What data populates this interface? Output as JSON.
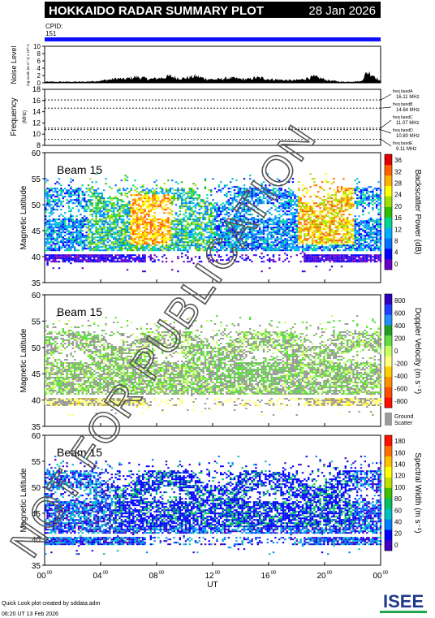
{
  "header": {
    "title": "HOKKAIDO RADAR SUMMARY PLOT",
    "date": "28 Jan 2026",
    "cpid_label": "CPID:",
    "cpid_value": "151"
  },
  "watermark": "NOT FOR PUBLICATION",
  "footer": {
    "line1": "Quick Look plot created by sddata.adm",
    "line2": "06:20 UT 13 Feb 2026",
    "logo_text": "ISEE"
  },
  "colors": {
    "accent_blue": "#1010ff",
    "ground_scatter": "#9a9a9a",
    "logo_green": "#1aa84a",
    "logo_blue": "#1f3a8c"
  },
  "chart_data": [
    {
      "type": "area",
      "panel": "noise",
      "ylabel": "Noise Level",
      "ylabel_sub": "log-scale (m s^-1) x 10^-4",
      "ylim": [
        0,
        10
      ],
      "yticks": [
        "0",
        "2",
        "4",
        "6",
        "8",
        "10"
      ],
      "x_range_ut_hours": [
        0,
        24
      ],
      "series": [
        {
          "values": [
            0.3,
            0.3,
            0.3,
            0.3,
            0.3,
            0.3,
            0.3,
            0.4,
            0.5,
            0.7,
            0.9,
            1.2,
            1.0,
            1.3,
            1.6,
            1.3,
            1.0,
            1.2,
            1.4,
            1.8,
            1.4,
            1.2,
            1.5,
            1.8,
            1.3,
            1.0,
            0.9,
            1.1,
            1.3,
            1.2,
            1.0,
            1.0,
            1.4,
            1.3,
            1.0,
            0.9,
            0.8,
            0.7,
            0.7,
            0.9,
            1.4,
            1.6,
            1.2,
            0.7,
            0.5,
            0.3,
            0.3,
            0.4,
            0.4,
            3.0,
            2.0,
            0.3
          ]
        }
      ]
    },
    {
      "type": "line",
      "panel": "frequency",
      "ylabel": "Frequency",
      "ylabel_unit": "(MHz)",
      "ylim": [
        8,
        18
      ],
      "yticks": [
        "8",
        "10",
        "12",
        "14",
        "16",
        "18"
      ],
      "freq_bands": [
        {
          "label": "freq bandA",
          "value": "16.11 MHz",
          "mhz": 16.11
        },
        {
          "label": "freq bandB",
          "value": "14.64 MHz",
          "mhz": 14.64
        },
        {
          "label": "freq bandC",
          "value": "11.07 MHz",
          "mhz": 11.07
        },
        {
          "label": "freq bandD",
          "value": "10.80 MHz",
          "mhz": 10.8
        },
        {
          "label": "freq bandE",
          "value": "9.11 MHz",
          "mhz": 9.11
        }
      ]
    },
    {
      "type": "heatmap",
      "panel": "power",
      "beam": "Beam 15",
      "ylabel": "Magnetic Latitude",
      "ylim": [
        35,
        60
      ],
      "yticks": [
        "35",
        "40",
        "45",
        "50",
        "55",
        "60"
      ],
      "colorbar_label": "Backscatter Power (dB)",
      "colorbar_ticks": [
        "0",
        "4",
        "8",
        "12",
        "16",
        "20",
        "24",
        "28",
        "32",
        "36"
      ],
      "colorbar_colors": [
        "#6a00c8",
        "#0000ff",
        "#0070ff",
        "#00b0ff",
        "#00d890",
        "#30c000",
        "#a0e000",
        "#ffff00",
        "#ffb000",
        "#ff6000",
        "#e00000"
      ]
    },
    {
      "type": "heatmap",
      "panel": "velocity",
      "beam": "Beam 15",
      "ylabel": "Magnetic Latitude",
      "ylim": [
        35,
        60
      ],
      "yticks": [
        "35",
        "40",
        "45",
        "50",
        "55",
        "60"
      ],
      "colorbar_label": "Doppler Velocity (m s⁻¹)",
      "colorbar_ticks": [
        "-800",
        "-600",
        "-400",
        "-200",
        "0",
        "200",
        "400",
        "600",
        "800"
      ],
      "colorbar_colors": [
        "#ff1000",
        "#ff5000",
        "#ff9000",
        "#ffd000",
        "#ffff80",
        "#c8ff60",
        "#60e040",
        "#20a020",
        "#2090ff",
        "#2040ff",
        "#3000c0"
      ],
      "ground_scatter_label": [
        "Ground",
        "Scatter"
      ]
    },
    {
      "type": "heatmap",
      "panel": "width",
      "beam": "Beam 15",
      "ylabel": "Magnetic Latitude",
      "ylim": [
        35,
        60
      ],
      "yticks": [
        "35",
        "40",
        "45",
        "50",
        "55",
        "60"
      ],
      "colorbar_label": "Spectral Width (m s⁻¹)",
      "colorbar_ticks": [
        "0",
        "20",
        "40",
        "60",
        "80",
        "100",
        "120",
        "140",
        "160",
        "180"
      ],
      "colorbar_colors": [
        "#4000c0",
        "#0000ff",
        "#0080ff",
        "#00c0c0",
        "#00c060",
        "#40c000",
        "#c0e000",
        "#ffff00",
        "#ffc000",
        "#ff7000",
        "#ff1000"
      ]
    }
  ],
  "x_axis": {
    "label": "UT",
    "ticks": [
      {
        "h": "00",
        "m": "00"
      },
      {
        "h": "04",
        "m": "00"
      },
      {
        "h": "08",
        "m": "00"
      },
      {
        "h": "12",
        "m": "00"
      },
      {
        "h": "16",
        "m": "00"
      },
      {
        "h": "20",
        "m": "00"
      },
      {
        "h": "00",
        "m": "00"
      }
    ]
  }
}
